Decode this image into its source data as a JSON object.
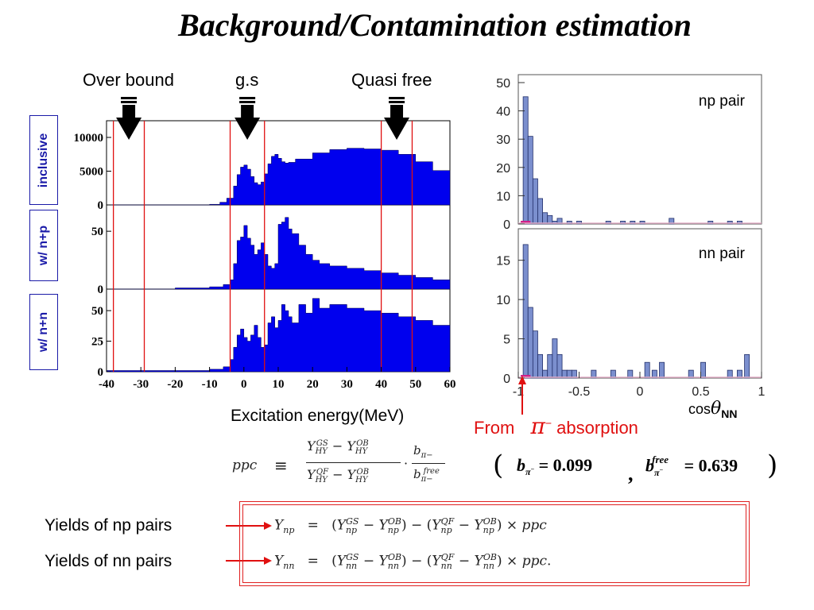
{
  "title": "Background/Contamination estimation",
  "left_plot": {
    "top_labels": {
      "over_bound": "Over bound",
      "gs": "g.s",
      "quasi_free": "Quasi free"
    },
    "panels": [
      {
        "side_label": "inclusive",
        "y_ticks": [
          "10000",
          "5000",
          "0"
        ]
      },
      {
        "side_label": "w/ n+p",
        "y_ticks": [
          "50",
          "0"
        ]
      },
      {
        "side_label": "w/ n+n",
        "y_ticks": [
          "50",
          "25",
          "0"
        ]
      }
    ],
    "x_ticks": [
      "-40",
      "-30",
      "-20",
      "-10",
      "0",
      "10",
      "20",
      "30",
      "40",
      "50",
      "60"
    ],
    "xlabel": "Excitation energy(MeV)",
    "bar_color": "#0000ee",
    "line_color": "#e01010"
  },
  "right_plot": {
    "top": {
      "label": "np pair",
      "y_ticks": [
        "50",
        "40",
        "30",
        "20",
        "10",
        "0"
      ]
    },
    "bottom": {
      "label": "nn pair",
      "y_ticks": [
        "15",
        "10",
        "5",
        "0"
      ]
    },
    "x_ticks": [
      "-1",
      "-0.5",
      "0",
      "0.5",
      "1"
    ],
    "xlabel_prefix": "cos",
    "xlabel_theta": "θ",
    "xlabel_sub": "NN",
    "fill_color": "#7b8fce"
  },
  "annotation": {
    "from": "From",
    "pi": "π",
    "sup": "−",
    "absorption": "absorption"
  },
  "ppc_formula": {
    "lhs": "ppc",
    "eqv": "≡"
  },
  "b_values": {
    "b_pi": "0.099",
    "b_free": "0.639",
    "free": "free"
  },
  "yields": {
    "np_label": "Yields  of  np pairs",
    "nn_label": "Yields  of  nn pairs",
    "ppc_end": "ppc"
  },
  "chart_data": [
    {
      "type": "bar",
      "title": "",
      "panel": "inclusive",
      "xlabel": "Excitation energy(MeV)",
      "xlim": [
        -40,
        60
      ],
      "ylim": [
        0,
        12000
      ],
      "markers": [
        -38,
        -29,
        -4,
        6,
        40,
        49
      ],
      "x": [
        -40,
        -35,
        -30,
        -25,
        -20,
        -15,
        -10,
        -7,
        -5,
        -3,
        -2,
        -1,
        0,
        1,
        2,
        3,
        4,
        5,
        6,
        7,
        8,
        9,
        10,
        11,
        12,
        13,
        15,
        20,
        25,
        30,
        35,
        40,
        45,
        50,
        55,
        60
      ],
      "values": [
        0,
        0,
        0,
        0,
        0,
        0,
        100,
        400,
        1000,
        2800,
        4500,
        5600,
        5900,
        5300,
        4200,
        3300,
        3000,
        3400,
        4600,
        6100,
        7200,
        7500,
        6900,
        6400,
        6200,
        6300,
        6800,
        7700,
        8200,
        8400,
        8300,
        8100,
        7500,
        6400,
        5100,
        4000
      ]
    },
    {
      "type": "bar",
      "title": "",
      "panel": "w/ n+p",
      "xlabel": "Excitation energy(MeV)",
      "xlim": [
        -40,
        60
      ],
      "ylim": [
        0,
        70
      ],
      "x": [
        -40,
        -30,
        -20,
        -10,
        -6,
        -4,
        -3,
        -2,
        -1,
        0,
        1,
        2,
        3,
        4,
        5,
        6,
        7,
        8,
        9,
        10,
        11,
        12,
        13,
        14,
        16,
        18,
        20,
        22,
        25,
        30,
        35,
        40,
        45,
        50,
        55,
        60
      ],
      "values": [
        0,
        0,
        1,
        2,
        4,
        8,
        22,
        42,
        45,
        55,
        44,
        38,
        30,
        34,
        40,
        30,
        20,
        18,
        22,
        56,
        58,
        62,
        52,
        48,
        38,
        30,
        25,
        22,
        20,
        18,
        16,
        14,
        12,
        10,
        8,
        6
      ]
    },
    {
      "type": "bar",
      "title": "",
      "panel": "w/ n+n",
      "xlabel": "Excitation energy(MeV)",
      "xlim": [
        -40,
        60
      ],
      "ylim": [
        0,
        65
      ],
      "x": [
        -40,
        -30,
        -20,
        -10,
        -6,
        -4,
        -3,
        -2,
        -1,
        0,
        1,
        2,
        3,
        4,
        5,
        6,
        7,
        8,
        9,
        10,
        11,
        12,
        13,
        14,
        16,
        18,
        20,
        22,
        25,
        30,
        35,
        40,
        45,
        50,
        55,
        60
      ],
      "values": [
        1,
        1,
        1,
        2,
        4,
        10,
        20,
        30,
        35,
        28,
        25,
        30,
        38,
        28,
        20,
        22,
        40,
        45,
        36,
        42,
        55,
        50,
        45,
        40,
        55,
        48,
        60,
        52,
        55,
        52,
        50,
        48,
        45,
        42,
        38,
        25
      ]
    },
    {
      "type": "bar",
      "title": "",
      "panel": "np pair",
      "xlabel": "cos θNN",
      "xlim": [
        -1,
        1
      ],
      "ylim": [
        0,
        50
      ],
      "x": [
        -0.96,
        -0.92,
        -0.88,
        -0.84,
        -0.8,
        -0.76,
        -0.72,
        -0.68,
        -0.6,
        -0.52,
        -0.28,
        -0.16,
        -0.08,
        0.0,
        0.24,
        0.56,
        0.72,
        0.8
      ],
      "values": [
        45,
        31,
        16,
        9,
        4,
        3,
        1,
        2,
        1,
        1,
        1,
        1,
        1,
        1,
        2,
        1,
        1,
        1
      ]
    },
    {
      "type": "bar",
      "title": "",
      "panel": "nn pair",
      "xlabel": "cos θNN",
      "xlim": [
        -1,
        1
      ],
      "ylim": [
        0,
        18
      ],
      "x": [
        -0.96,
        -0.92,
        -0.88,
        -0.84,
        -0.8,
        -0.76,
        -0.72,
        -0.68,
        -0.64,
        -0.6,
        -0.56,
        -0.4,
        -0.24,
        -0.1,
        0.04,
        0.1,
        0.16,
        0.4,
        0.5,
        0.72,
        0.8,
        0.86
      ],
      "values": [
        17,
        9,
        6,
        3,
        1,
        3,
        5,
        3,
        1,
        1,
        1,
        1,
        1,
        1,
        2,
        1,
        2,
        1,
        2,
        1,
        1,
        3
      ]
    }
  ]
}
